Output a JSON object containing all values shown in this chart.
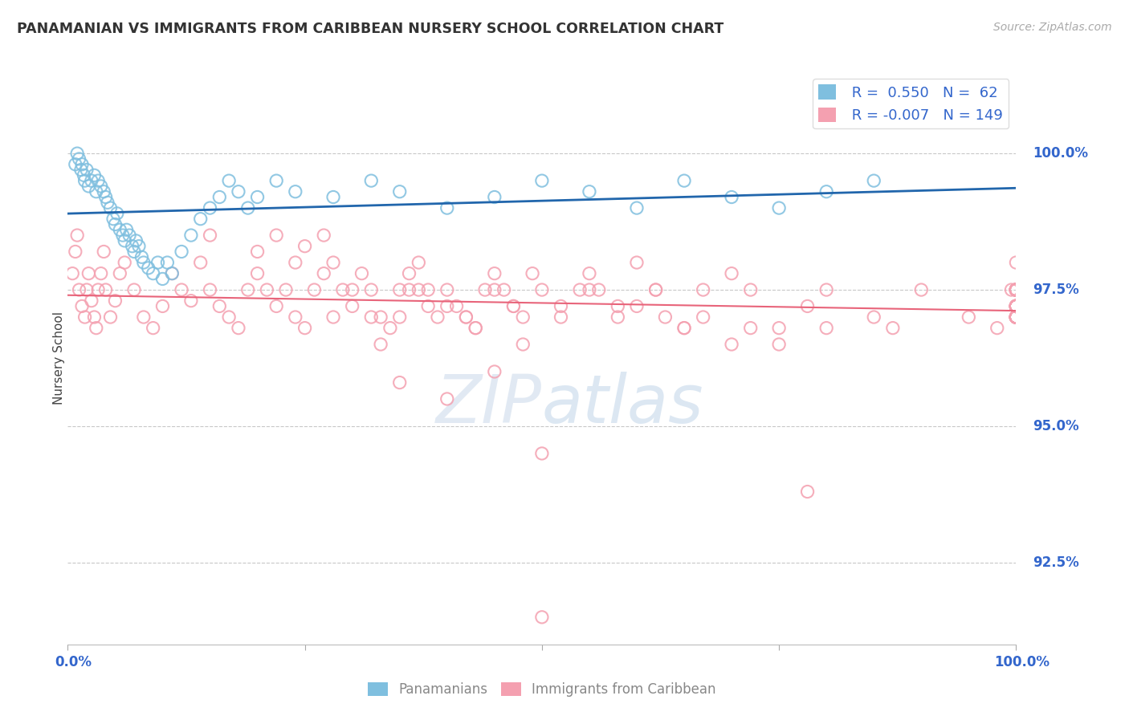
{
  "title": "PANAMANIAN VS IMMIGRANTS FROM CARIBBEAN NURSERY SCHOOL CORRELATION CHART",
  "source": "Source: ZipAtlas.com",
  "ylabel": "Nursery School",
  "legend_labels": [
    "Panamanians",
    "Immigrants from Caribbean"
  ],
  "blue_r": "0.550",
  "blue_n": "62",
  "pink_r": "-0.007",
  "pink_n": "149",
  "y_ticks": [
    92.5,
    95.0,
    97.5,
    100.0
  ],
  "xlim": [
    0.0,
    100.0
  ],
  "ylim": [
    91.0,
    101.5
  ],
  "blue_color": "#7fbfdf",
  "pink_color": "#f4a0b0",
  "blue_trend_color": "#2166ac",
  "pink_trend_color": "#e8647a",
  "grid_color": "#c8c8c8",
  "tick_label_color": "#3366cc",
  "title_color": "#333333",
  "blue_points_x": [
    0.8,
    1.0,
    1.2,
    1.4,
    1.5,
    1.7,
    1.8,
    2.0,
    2.2,
    2.5,
    2.8,
    3.0,
    3.2,
    3.5,
    3.8,
    4.0,
    4.2,
    4.5,
    4.8,
    5.0,
    5.2,
    5.5,
    5.8,
    6.0,
    6.2,
    6.5,
    6.8,
    7.0,
    7.2,
    7.5,
    7.8,
    8.0,
    8.5,
    9.0,
    9.5,
    10.0,
    10.5,
    11.0,
    12.0,
    13.0,
    14.0,
    15.0,
    16.0,
    17.0,
    18.0,
    19.0,
    20.0,
    22.0,
    24.0,
    28.0,
    32.0,
    35.0,
    40.0,
    45.0,
    50.0,
    55.0,
    60.0,
    65.0,
    70.0,
    75.0,
    80.0,
    85.0
  ],
  "blue_points_y": [
    99.8,
    100.0,
    99.9,
    99.7,
    99.8,
    99.6,
    99.5,
    99.7,
    99.4,
    99.5,
    99.6,
    99.3,
    99.5,
    99.4,
    99.3,
    99.2,
    99.1,
    99.0,
    98.8,
    98.7,
    98.9,
    98.6,
    98.5,
    98.4,
    98.6,
    98.5,
    98.3,
    98.2,
    98.4,
    98.3,
    98.1,
    98.0,
    97.9,
    97.8,
    98.0,
    97.7,
    98.0,
    97.8,
    98.2,
    98.5,
    98.8,
    99.0,
    99.2,
    99.5,
    99.3,
    99.0,
    99.2,
    99.5,
    99.3,
    99.2,
    99.5,
    99.3,
    99.0,
    99.2,
    99.5,
    99.3,
    99.0,
    99.5,
    99.2,
    99.0,
    99.3,
    99.5
  ],
  "pink_points_x": [
    0.5,
    0.8,
    1.0,
    1.2,
    1.5,
    1.8,
    2.0,
    2.2,
    2.5,
    2.8,
    3.0,
    3.2,
    3.5,
    3.8,
    4.0,
    4.5,
    5.0,
    5.5,
    6.0,
    7.0,
    8.0,
    9.0,
    10.0,
    11.0,
    12.0,
    13.0,
    14.0,
    15.0,
    16.0,
    17.0,
    18.0,
    19.0,
    20.0,
    21.0,
    22.0,
    23.0,
    24.0,
    25.0,
    26.0,
    27.0,
    28.0,
    29.0,
    30.0,
    31.0,
    32.0,
    33.0,
    34.0,
    35.0,
    36.0,
    37.0,
    38.0,
    39.0,
    40.0,
    41.0,
    42.0,
    43.0,
    44.0,
    45.0,
    46.0,
    47.0,
    48.0,
    49.0,
    50.0,
    52.0,
    54.0,
    55.0,
    56.0,
    58.0,
    60.0,
    62.0,
    63.0,
    65.0,
    67.0,
    70.0,
    72.0,
    75.0,
    78.0,
    80.0,
    85.0,
    87.0,
    90.0,
    95.0,
    98.0,
    99.5,
    100.0,
    100.0,
    100.0,
    100.0,
    100.0,
    100.0,
    100.0,
    100.0,
    100.0,
    100.0,
    100.0,
    100.0,
    100.0,
    100.0,
    100.0,
    100.0,
    100.0,
    100.0,
    100.0,
    100.0,
    100.0,
    100.0,
    100.0,
    100.0,
    100.0,
    100.0,
    100.0,
    100.0,
    100.0,
    100.0,
    100.0,
    100.0,
    100.0,
    100.0,
    100.0,
    100.0,
    100.0,
    100.0,
    100.0,
    100.0,
    100.0,
    100.0,
    100.0,
    100.0,
    100.0,
    100.0,
    100.0,
    100.0,
    100.0,
    100.0,
    100.0,
    100.0,
    100.0,
    100.0,
    100.0,
    100.0,
    100.0,
    100.0,
    100.0,
    100.0,
    100.0
  ],
  "pink_points_y": [
    97.8,
    98.2,
    98.5,
    97.5,
    97.2,
    97.0,
    97.5,
    97.8,
    97.3,
    97.0,
    96.8,
    97.5,
    97.8,
    98.2,
    97.5,
    97.0,
    97.3,
    97.8,
    98.0,
    97.5,
    97.0,
    96.8,
    97.2,
    97.8,
    97.5,
    97.3,
    98.0,
    97.5,
    97.2,
    97.0,
    96.8,
    97.5,
    97.8,
    97.5,
    97.2,
    97.5,
    97.0,
    96.8,
    97.5,
    97.8,
    97.0,
    97.5,
    97.2,
    97.8,
    97.5,
    97.0,
    96.8,
    97.5,
    97.8,
    97.5,
    97.2,
    97.0,
    97.5,
    97.2,
    97.0,
    96.8,
    97.5,
    97.8,
    97.5,
    97.2,
    97.0,
    97.8,
    97.5,
    97.2,
    97.5,
    97.8,
    97.5,
    97.2,
    98.0,
    97.5,
    97.0,
    96.8,
    97.5,
    97.8,
    97.5,
    96.8,
    97.2,
    97.5,
    97.0,
    96.8,
    97.5,
    97.0,
    96.8,
    97.5,
    98.0,
    97.5,
    97.2,
    97.0,
    97.5,
    97.2,
    97.0,
    97.5,
    97.2,
    97.0,
    97.5,
    97.2,
    97.0,
    97.5,
    97.2,
    97.0,
    97.5,
    97.2,
    97.0,
    97.5,
    97.2,
    97.0,
    97.5,
    97.2,
    97.0,
    97.5,
    97.2,
    97.0,
    97.5,
    97.2,
    97.0,
    97.5,
    97.2,
    97.0,
    97.5,
    97.2,
    97.0,
    97.5,
    97.2,
    97.0,
    97.5,
    97.2,
    97.0,
    97.5,
    97.2,
    97.0,
    97.5,
    97.2,
    97.0,
    97.5,
    97.2,
    97.0,
    97.5,
    97.2,
    97.0,
    97.5,
    97.2,
    97.0,
    97.5,
    97.2,
    97.0
  ],
  "pink_scattered_x": [
    15.0,
    20.0,
    22.0,
    24.0,
    25.0,
    27.0,
    28.0,
    30.0,
    32.0,
    33.0,
    35.0,
    36.0,
    37.0,
    38.0,
    40.0,
    42.0,
    43.0,
    45.0,
    47.0,
    48.0,
    50.0,
    52.0,
    55.0,
    58.0,
    60.0,
    62.0,
    65.0,
    67.0,
    70.0,
    72.0,
    75.0,
    78.0,
    80.0,
    35.0,
    40.0,
    45.0,
    50.0
  ],
  "pink_scattered_y": [
    98.5,
    98.2,
    98.5,
    98.0,
    98.3,
    98.5,
    98.0,
    97.5,
    97.0,
    96.5,
    97.0,
    97.5,
    98.0,
    97.5,
    97.2,
    97.0,
    96.8,
    97.5,
    97.2,
    96.5,
    94.5,
    97.0,
    97.5,
    97.0,
    97.2,
    97.5,
    96.8,
    97.0,
    96.5,
    96.8,
    96.5,
    93.8,
    96.8,
    95.8,
    95.5,
    96.0,
    91.5
  ]
}
